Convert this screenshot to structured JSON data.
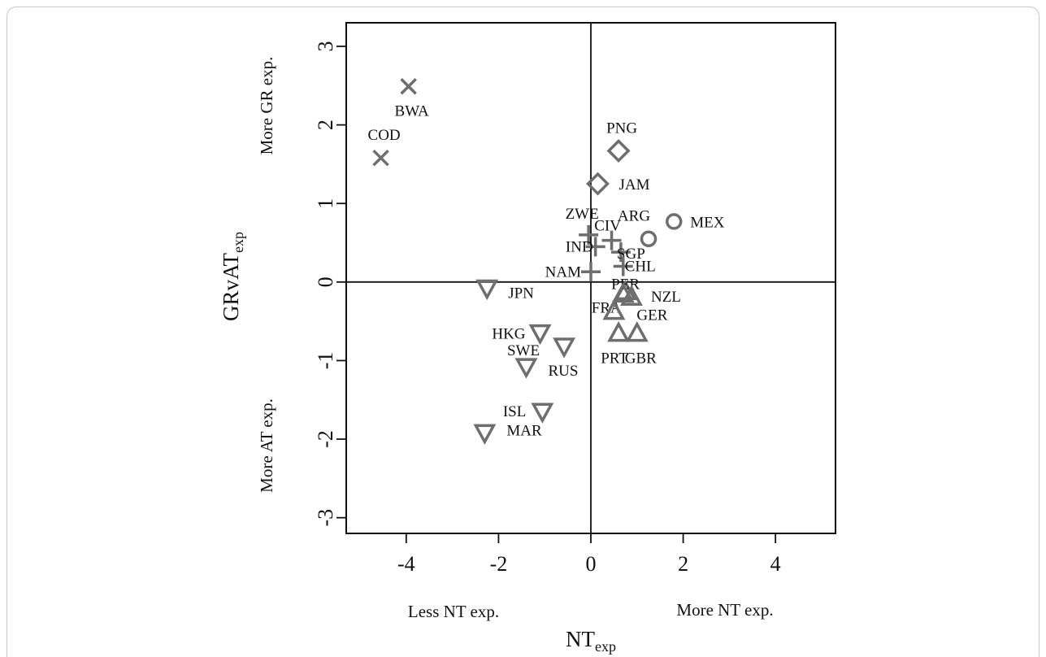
{
  "chart_data": {
    "type": "scatter",
    "xlim": [
      -5.3,
      5.3
    ],
    "ylim": [
      -3.2,
      3.3
    ],
    "x_ticks": [
      -4,
      -2,
      0,
      2,
      4
    ],
    "y_ticks": [
      -3,
      -2,
      -1,
      0,
      1,
      2,
      3
    ],
    "x_tick_labels": [
      "-4",
      "-2",
      "0",
      "2",
      "4"
    ],
    "y_tick_labels": [
      "-3",
      "-2",
      "-1",
      "0",
      "1",
      "2",
      "3"
    ],
    "xlabel": {
      "main": "NT",
      "sub": "exp"
    },
    "ylabel": {
      "main": "GRvAT",
      "sub": "exp"
    },
    "annotations": {
      "less_nt": "Less NT exp.",
      "more_nt": "More NT exp.",
      "more_gr": "More GR exp.",
      "more_at": "More AT exp."
    },
    "grid": false,
    "reference_lines": {
      "x": 0,
      "y": 0
    },
    "colors": {
      "marker": "#6e6e6e",
      "axis": "#111111",
      "text": "#111111"
    },
    "points": [
      {
        "label": "BWA",
        "x": -3.95,
        "y": 2.49,
        "shape": "cross"
      },
      {
        "label": "COD",
        "x": -4.55,
        "y": 1.58,
        "shape": "cross"
      },
      {
        "label": "PNG",
        "x": 0.6,
        "y": 1.67,
        "shape": "diamond"
      },
      {
        "label": "JAM",
        "x": 0.15,
        "y": 1.25,
        "shape": "diamond"
      },
      {
        "label": "ARG",
        "x": 1.25,
        "y": 0.55,
        "shape": "circle"
      },
      {
        "label": "MEX",
        "x": 1.8,
        "y": 0.77,
        "shape": "circle"
      },
      {
        "label": "ZWE",
        "x": -0.05,
        "y": 0.6,
        "shape": "plus"
      },
      {
        "label": "CIV",
        "x": 0.45,
        "y": 0.53,
        "shape": "plus"
      },
      {
        "label": "IND",
        "x": 0.1,
        "y": 0.45,
        "shape": "plus"
      },
      {
        "label": "SGP",
        "x": 0.65,
        "y": 0.38,
        "shape": "plus"
      },
      {
        "label": "CHL",
        "x": 0.7,
        "y": 0.2,
        "shape": "plus"
      },
      {
        "label": "NAM",
        "x": 0.0,
        "y": 0.13,
        "shape": "plus"
      },
      {
        "label": "PER",
        "x": 0.75,
        "y": -0.12,
        "shape": "triangle-up"
      },
      {
        "label": "FRA",
        "x": 0.7,
        "y": -0.15,
        "shape": "triangle-up"
      },
      {
        "label": "NZL",
        "x": 0.88,
        "y": -0.19,
        "shape": "triangle-up"
      },
      {
        "label": "GER",
        "x": 0.5,
        "y": -0.37,
        "shape": "triangle-up"
      },
      {
        "label": "PRT",
        "x": 0.6,
        "y": -0.65,
        "shape": "triangle-up"
      },
      {
        "label": "GBR",
        "x": 1.0,
        "y": -0.65,
        "shape": "triangle-up"
      },
      {
        "label": "JPN",
        "x": -2.25,
        "y": -0.08,
        "shape": "triangle-down"
      },
      {
        "label": "HKG",
        "x": -1.1,
        "y": -0.65,
        "shape": "triangle-down"
      },
      {
        "label": "SWE",
        "x": -0.58,
        "y": -0.82,
        "shape": "triangle-down"
      },
      {
        "label": "RUS",
        "x": -1.4,
        "y": -1.08,
        "shape": "triangle-down"
      },
      {
        "label": "ISL",
        "x": -1.05,
        "y": -1.65,
        "shape": "triangle-down"
      },
      {
        "label": "MAR",
        "x": -2.3,
        "y": -1.92,
        "shape": "triangle-down"
      }
    ]
  }
}
